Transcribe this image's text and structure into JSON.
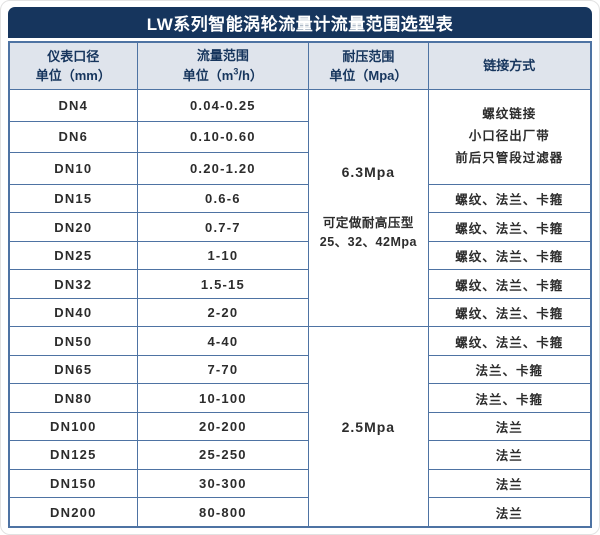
{
  "title": "LW系列智能涡轮流量计流量范围选型表",
  "colors": {
    "title-bar-bg": "#16355d",
    "header-bg": "#dfe4ec",
    "header-text": "#16355d",
    "border": "#4e73a3",
    "body-text": "#2c2c2c"
  },
  "headers": {
    "diameter": {
      "title": "仪表口径",
      "unit": "单位（mm）"
    },
    "flow": {
      "title": "流量范围",
      "unit_prefix": "单位（m",
      "unit_sup": "3",
      "unit_suffix": "/h）"
    },
    "pressure": {
      "title": "耐压范围",
      "unit": "单位（Mpa）"
    },
    "connection": {
      "title": "链接方式"
    }
  },
  "pressure_cells": {
    "high": {
      "value": "6.3Mpa",
      "note1": "可定做耐高压型",
      "note2": "25、32、42Mpa"
    },
    "low": {
      "value": "2.5Mpa"
    }
  },
  "connection_merged": {
    "line1": "螺纹链接",
    "line2": "小口径出厂带",
    "line3": "前后只管段过滤器"
  },
  "rows": [
    {
      "dn": "DN4",
      "range": "0.04-0.25"
    },
    {
      "dn": "DN6",
      "range": "0.10-0.60"
    },
    {
      "dn": "DN10",
      "range": "0.20-1.20"
    },
    {
      "dn": "DN15",
      "range": "0.6-6",
      "conn": "螺纹、法兰、卡箍"
    },
    {
      "dn": "DN20",
      "range": "0.7-7",
      "conn": "螺纹、法兰、卡箍"
    },
    {
      "dn": "DN25",
      "range": "1-10",
      "conn": "螺纹、法兰、卡箍"
    },
    {
      "dn": "DN32",
      "range": "1.5-15",
      "conn": "螺纹、法兰、卡箍"
    },
    {
      "dn": "DN40",
      "range": "2-20",
      "conn": "螺纹、法兰、卡箍"
    },
    {
      "dn": "DN50",
      "range": "4-40",
      "conn": "螺纹、法兰、卡箍"
    },
    {
      "dn": "DN65",
      "range": "7-70",
      "conn": "法兰、卡箍"
    },
    {
      "dn": "DN80",
      "range": "10-100",
      "conn": "法兰、卡箍"
    },
    {
      "dn": "DN100",
      "range": "20-200",
      "conn": "法兰"
    },
    {
      "dn": "DN125",
      "range": "25-250",
      "conn": "法兰"
    },
    {
      "dn": "DN150",
      "range": "30-300",
      "conn": "法兰"
    },
    {
      "dn": "DN200",
      "range": "80-800",
      "conn": "法兰"
    }
  ]
}
